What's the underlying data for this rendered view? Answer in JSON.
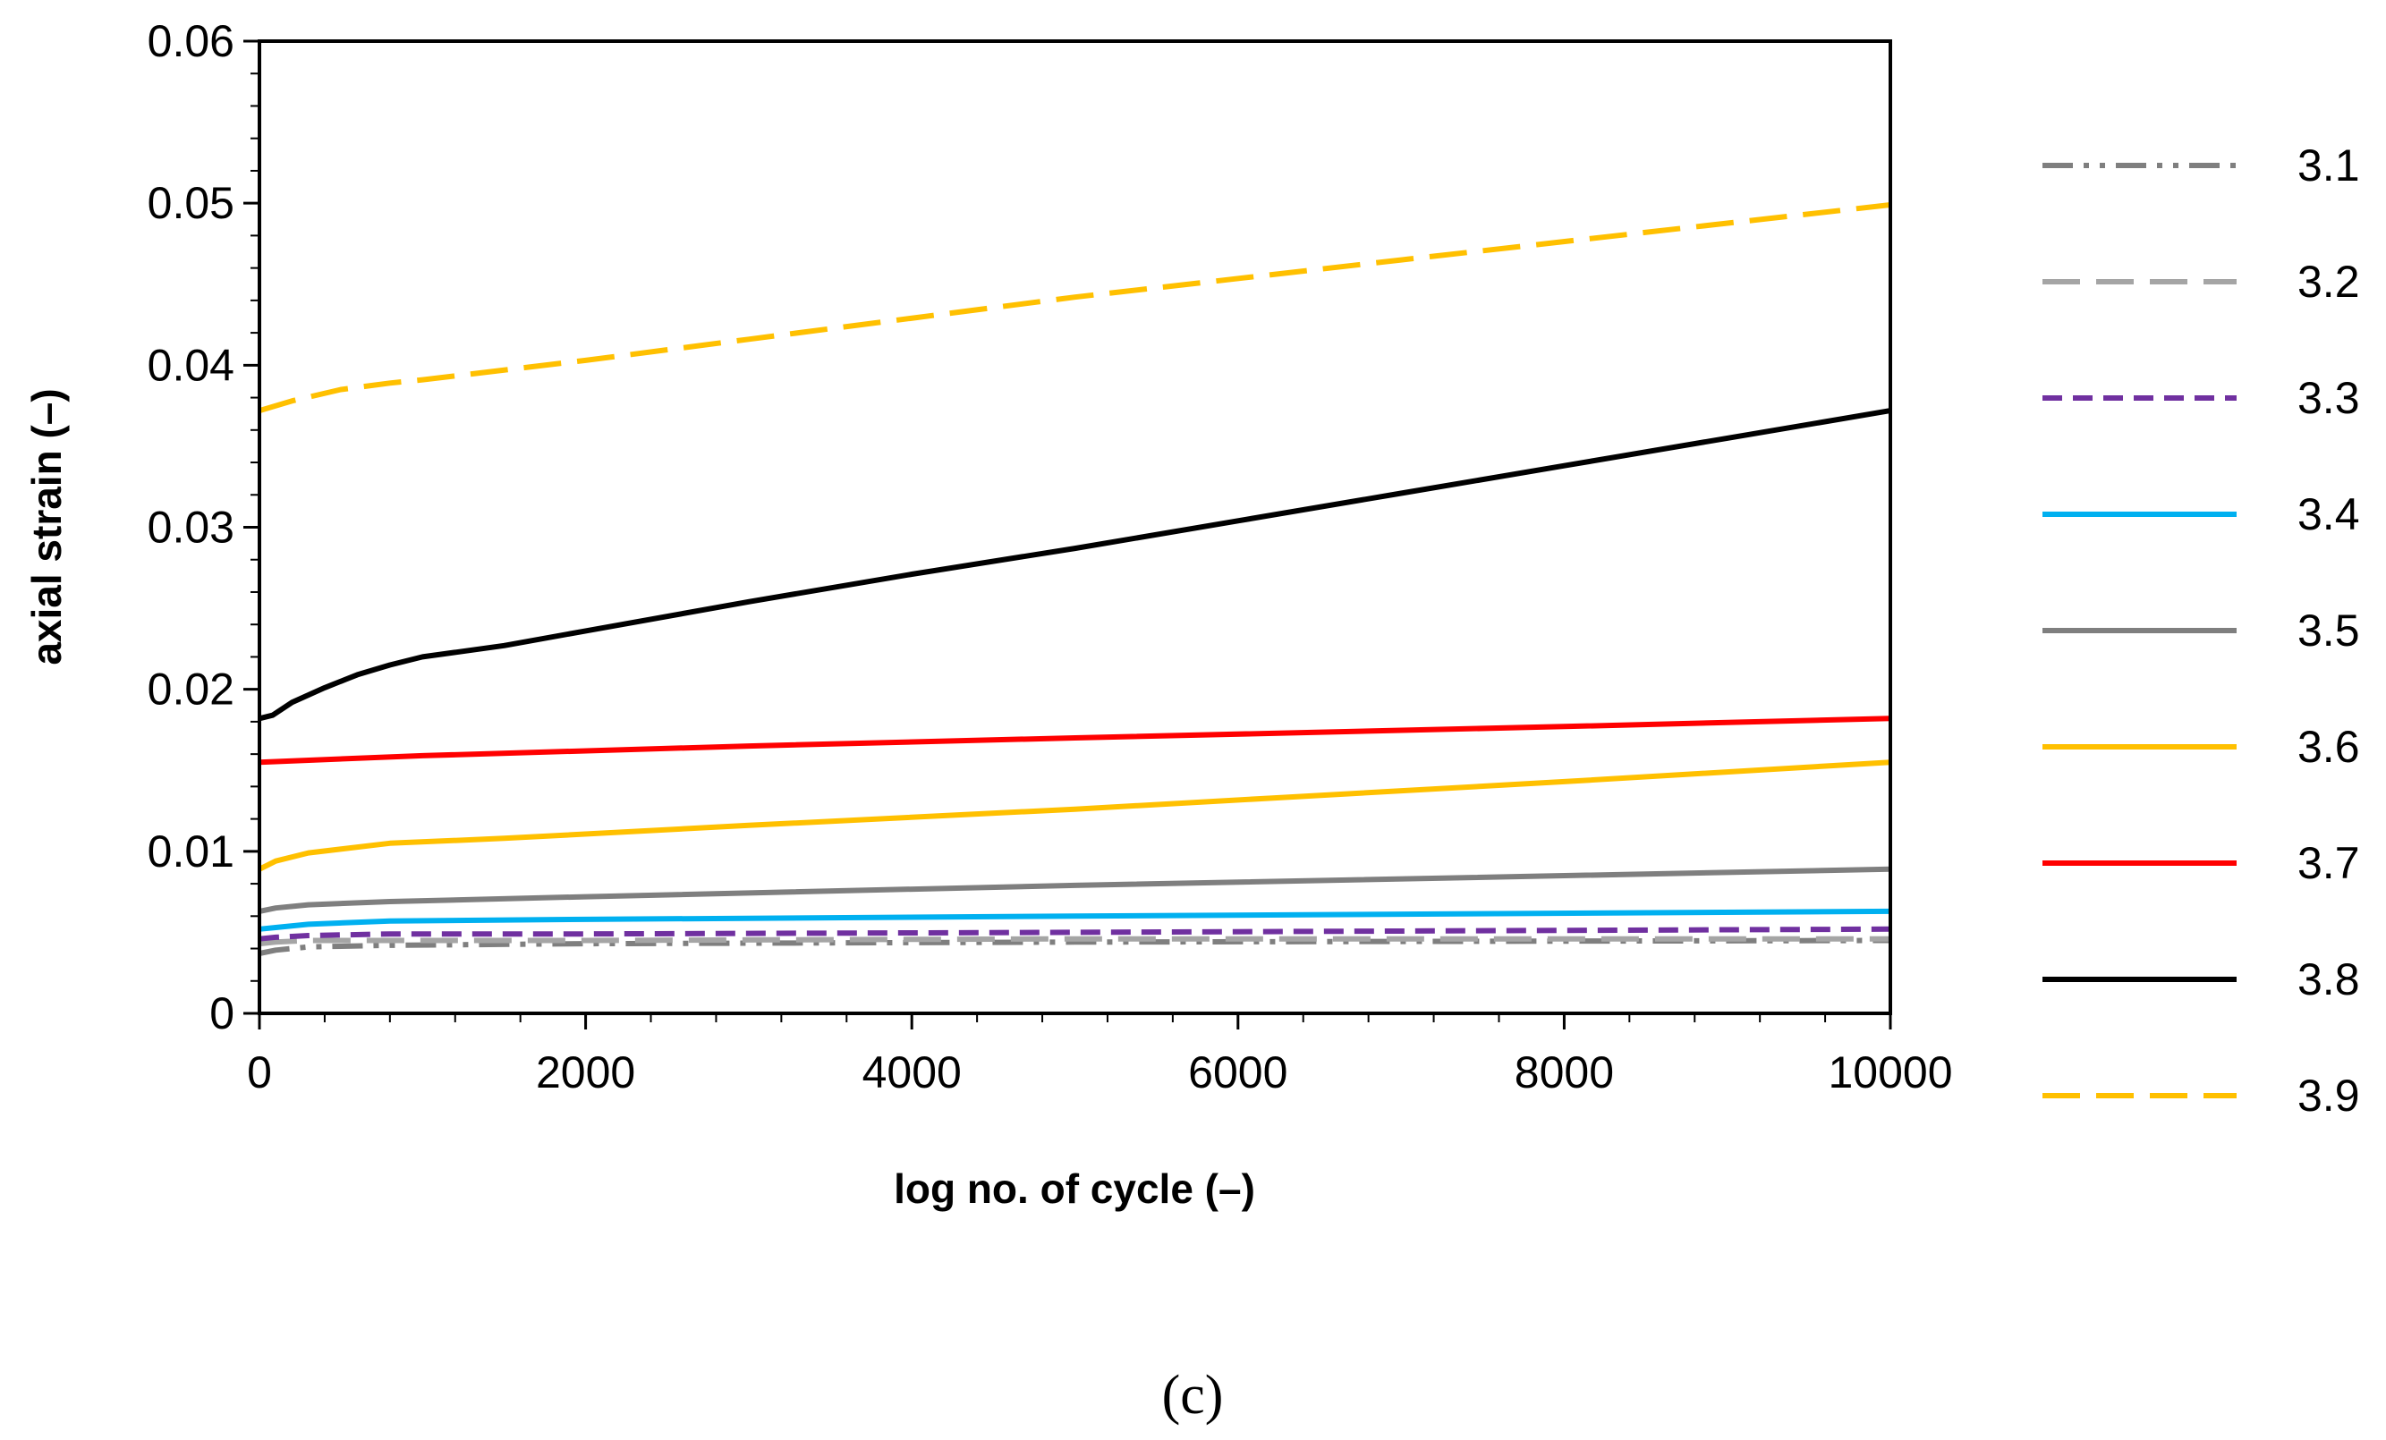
{
  "caption": "(c)",
  "chart_data": {
    "type": "line",
    "title": "",
    "xlabel": "log no. of cycle (–)",
    "ylabel": "axial strain (–)",
    "xlim": [
      0,
      10000
    ],
    "ylim": [
      0,
      0.06
    ],
    "xticks": [
      0,
      2000,
      4000,
      6000,
      8000,
      10000
    ],
    "xtick_labels": [
      "0",
      "2000",
      "4000",
      "6000",
      "8000",
      "10000"
    ],
    "yticks": [
      0,
      0.01,
      0.02,
      0.03,
      0.04,
      0.05,
      0.06
    ],
    "ytick_labels": [
      "0",
      "0.01",
      "0.02",
      "0.03",
      "0.04",
      "0.05",
      "0.06"
    ],
    "grid": false,
    "legend_position": "right",
    "series": [
      {
        "name": "3.1",
        "color": "#7f7f7f",
        "style": "dash-dot-dot",
        "x": [
          0,
          100,
          300,
          800,
          2000,
          5000,
          10000
        ],
        "y": [
          0.0037,
          0.0039,
          0.0041,
          0.0042,
          0.0043,
          0.0044,
          0.0045
        ]
      },
      {
        "name": "3.2",
        "color": "#a5a5a5",
        "style": "long-dash",
        "x": [
          0,
          100,
          300,
          800,
          2000,
          5000,
          10000
        ],
        "y": [
          0.0043,
          0.0044,
          0.0045,
          0.0045,
          0.0045,
          0.0046,
          0.0046
        ]
      },
      {
        "name": "3.3",
        "color": "#7030a0",
        "style": "dash",
        "x": [
          0,
          100,
          300,
          800,
          2000,
          5000,
          10000
        ],
        "y": [
          0.0046,
          0.0047,
          0.0048,
          0.0049,
          0.0049,
          0.005,
          0.0052
        ]
      },
      {
        "name": "3.4",
        "color": "#00b0f0",
        "style": "solid",
        "x": [
          0,
          100,
          300,
          800,
          2000,
          5000,
          10000
        ],
        "y": [
          0.0052,
          0.0053,
          0.0055,
          0.0057,
          0.0058,
          0.006,
          0.0063
        ]
      },
      {
        "name": "3.5",
        "color": "#7f7f7f",
        "style": "solid",
        "x": [
          0,
          100,
          300,
          800,
          2000,
          5000,
          10000
        ],
        "y": [
          0.0063,
          0.0065,
          0.0067,
          0.0069,
          0.0072,
          0.0079,
          0.0089
        ]
      },
      {
        "name": "3.6",
        "color": "#ffc000",
        "style": "solid",
        "x": [
          0,
          100,
          300,
          800,
          1500,
          3000,
          5000,
          8000,
          10000
        ],
        "y": [
          0.0089,
          0.0094,
          0.0099,
          0.0105,
          0.0108,
          0.0116,
          0.0126,
          0.0143,
          0.0155
        ]
      },
      {
        "name": "3.7",
        "color": "#ff0000",
        "style": "solid",
        "x": [
          0,
          1000,
          3000,
          5000,
          8000,
          10000
        ],
        "y": [
          0.0155,
          0.0159,
          0.0165,
          0.017,
          0.0177,
          0.0182
        ]
      },
      {
        "name": "3.8",
        "color": "#000000",
        "style": "solid",
        "x": [
          0,
          80,
          200,
          400,
          600,
          800,
          1000,
          1500,
          2000,
          3000,
          4000,
          5000,
          6000,
          7000,
          8000,
          9000,
          10000
        ],
        "y": [
          0.0182,
          0.0184,
          0.0192,
          0.0201,
          0.0209,
          0.0215,
          0.022,
          0.0227,
          0.0236,
          0.0254,
          0.0271,
          0.0287,
          0.0304,
          0.0321,
          0.0338,
          0.0355,
          0.0372
        ]
      },
      {
        "name": "3.9",
        "color": "#ffc000",
        "style": "long-dash",
        "x": [
          0,
          200,
          500,
          800,
          1000,
          2000,
          3000,
          5000,
          7000,
          10000
        ],
        "y": [
          0.0372,
          0.0378,
          0.0385,
          0.0389,
          0.0391,
          0.0403,
          0.0416,
          0.0442,
          0.0465,
          0.0499
        ]
      }
    ]
  }
}
